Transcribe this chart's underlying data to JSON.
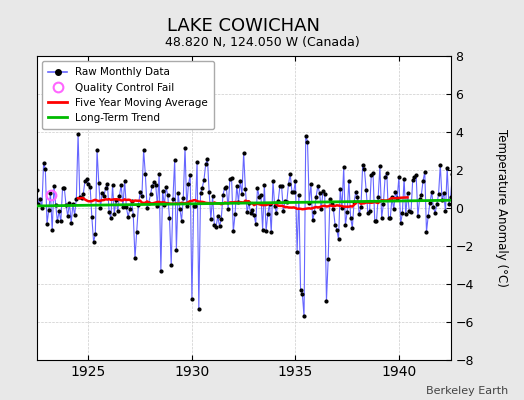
{
  "title": "LAKE COWICHAN",
  "subtitle": "48.820 N, 124.050 W (Canada)",
  "ylabel": "Temperature Anomaly (°C)",
  "credit": "Berkeley Earth",
  "xlim": [
    1922.5,
    1942.5
  ],
  "ylim": [
    -8,
    8
  ],
  "yticks": [
    -8,
    -6,
    -4,
    -2,
    0,
    2,
    4,
    6,
    8
  ],
  "xticks": [
    1925,
    1930,
    1935,
    1940
  ],
  "background_color": "#e8e8e8",
  "plot_bg_color": "#ffffff",
  "raw_line_color": "#6666ff",
  "raw_marker_color": "#000000",
  "ma_color": "#ff0000",
  "trend_color": "#00bb00",
  "qc_color": "#ff66ff",
  "seed": 17,
  "start_year": 1922,
  "end_year": 1942,
  "n_months": 252
}
